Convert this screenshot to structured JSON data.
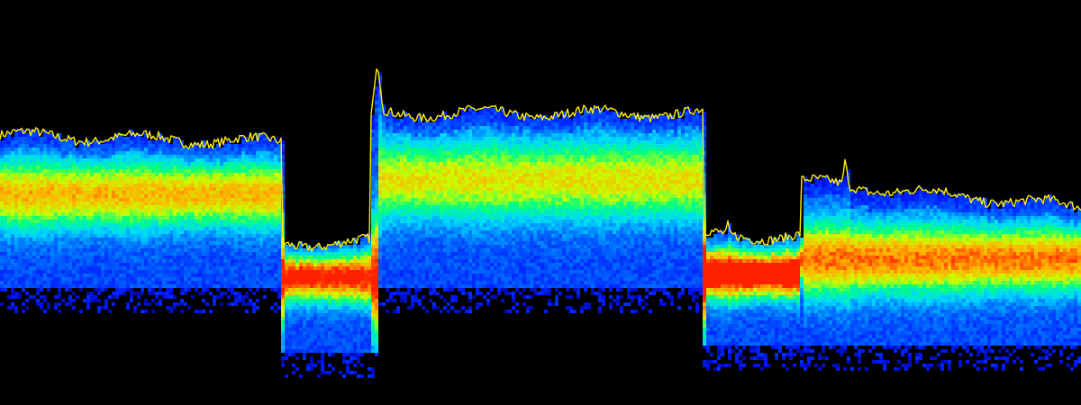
{
  "chart_data": {
    "type": "area",
    "description_type": "spectrogram-with-peak-trace",
    "background_color": "#000000",
    "trace_color": "#ffee00",
    "colormap": [
      "#000060",
      "#0018ff",
      "#0070ff",
      "#00d8ff",
      "#00ff80",
      "#c8ff00",
      "#ffb000",
      "#ff2000"
    ],
    "grid": false,
    "axes_visible": false,
    "ylim": [
      0,
      100
    ],
    "x_extent": [
      0,
      100
    ],
    "segments": [
      {
        "x0": 0,
        "x1": 26,
        "peak": 70,
        "peak_end": 68,
        "floor": 28,
        "hot": 54,
        "hot_intensity": 0.62
      },
      {
        "x0": 26,
        "x1": 35,
        "peak": 40,
        "peak_end": 40,
        "floor": 10,
        "hot": 31,
        "hot_intensity": 0.82
      },
      {
        "x0": 35,
        "x1": 65,
        "peak": 76,
        "peak_end": 76,
        "floor": 28,
        "hot": 58,
        "hot_intensity": 0.55
      },
      {
        "x0": 65,
        "x1": 74,
        "peak": 42,
        "peak_end": 42,
        "floor": 12,
        "hot": 32,
        "hot_intensity": 0.95
      },
      {
        "x0": 74,
        "x1": 100,
        "peak": 57,
        "peak_end": 50,
        "floor": 12,
        "hot": 36,
        "hot_intensity": 0.7
      }
    ],
    "spikes": [
      {
        "x": 34.9,
        "peak": 90
      },
      {
        "x": 67.3,
        "peak": 47
      },
      {
        "x": 78.2,
        "peak": 64
      }
    ]
  }
}
